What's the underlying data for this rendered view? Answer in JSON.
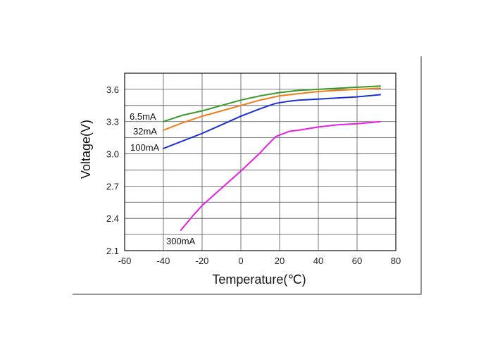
{
  "chart_data": {
    "type": "line",
    "title": "",
    "xlabel": "Temperature(℃)",
    "ylabel": "Voltage(V)",
    "xlim": [
      -60,
      80
    ],
    "ylim": [
      2.1,
      3.75
    ],
    "xticks": [
      -60,
      -40,
      -20,
      0,
      20,
      40,
      60,
      80
    ],
    "yticks": [
      2.1,
      2.4,
      2.7,
      3.0,
      3.3,
      3.6
    ],
    "xtick_labels": [
      "-60",
      "-40",
      "-20",
      "0",
      "20",
      "40",
      "60",
      "80"
    ],
    "ytick_labels": [
      "2.1",
      "2.4",
      "2.7",
      "3.0",
      "3.3",
      "3.6"
    ],
    "grid": true,
    "series": [
      {
        "name": "6.5mA",
        "color": "#3a9a2a",
        "x": [
          -40,
          -30,
          -20,
          -10,
          0,
          10,
          20,
          30,
          40,
          50,
          60,
          72
        ],
        "y": [
          3.3,
          3.36,
          3.4,
          3.45,
          3.5,
          3.54,
          3.57,
          3.59,
          3.6,
          3.61,
          3.62,
          3.63
        ]
      },
      {
        "name": "32mA",
        "color": "#f07d1a",
        "x": [
          -40,
          -30,
          -20,
          -10,
          0,
          10,
          20,
          30,
          40,
          50,
          60,
          72
        ],
        "y": [
          3.22,
          3.29,
          3.35,
          3.4,
          3.45,
          3.5,
          3.54,
          3.56,
          3.58,
          3.59,
          3.6,
          3.61
        ]
      },
      {
        "name": "100mA",
        "color": "#1a2fd6",
        "x": [
          -40,
          -30,
          -20,
          -10,
          0,
          10,
          18,
          25,
          30,
          40,
          50,
          60,
          72
        ],
        "y": [
          3.05,
          3.12,
          3.19,
          3.27,
          3.35,
          3.42,
          3.47,
          3.49,
          3.5,
          3.51,
          3.52,
          3.53,
          3.55
        ]
      },
      {
        "name": "300mA",
        "color": "#e61ee6",
        "x": [
          -31,
          -25,
          -20,
          -10,
          0,
          10,
          13,
          18,
          25,
          30,
          40,
          50,
          60,
          72
        ],
        "y": [
          2.29,
          2.42,
          2.52,
          2.68,
          2.84,
          3.01,
          3.07,
          3.16,
          3.21,
          3.22,
          3.25,
          3.27,
          3.28,
          3.3
        ]
      }
    ]
  }
}
